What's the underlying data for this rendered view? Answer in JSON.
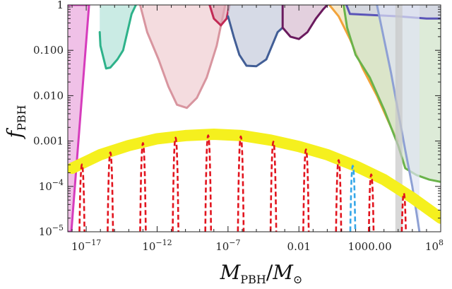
{
  "chart_data": {
    "type": "line",
    "title": "",
    "xscale": "log",
    "yscale": "log",
    "xlim_log10": [
      -18.3,
      8
    ],
    "ylim_log10": [
      -5,
      0
    ],
    "xlabel": {
      "main": "M",
      "sub": "PBH",
      "sep": "/",
      "main2": "M",
      "sub2": "⊙"
    },
    "ylabel": {
      "main": "f",
      "sub": "PBH"
    },
    "x_ticks": [
      {
        "log": -17,
        "base": "10",
        "exp": "−17"
      },
      {
        "log": -12,
        "base": "10",
        "exp": "−12"
      },
      {
        "log": -7,
        "base": "10",
        "exp": "−7"
      },
      {
        "log": -2,
        "text": "0.01"
      },
      {
        "log": 3,
        "text": "1000.00"
      },
      {
        "log": 8,
        "base": "10",
        "exp": "8"
      }
    ],
    "y_ticks": [
      {
        "log": 0,
        "text": "1"
      },
      {
        "log": -1,
        "text": "0.100"
      },
      {
        "log": -2,
        "text": "0.010"
      },
      {
        "log": -3,
        "text": "0.001"
      },
      {
        "log": -4,
        "base": "10",
        "exp": "−4"
      },
      {
        "log": -5,
        "base": "10",
        "exp": "−5"
      }
    ],
    "constraints": [
      {
        "name": "magenta",
        "stroke": "#d63cbc",
        "fill": "#e9a6dd",
        "points": [
          [
            -18.3,
            -5
          ],
          [
            -18.05,
            -5
          ],
          [
            -16.8,
            0
          ],
          [
            -18.3,
            0
          ]
        ]
      },
      {
        "name": "teal",
        "stroke": "#2eb28a",
        "fill": "#b4e3d8",
        "points": [
          [
            -16.05,
            -0.6
          ],
          [
            -16,
            -0.9
          ],
          [
            -15.6,
            -1.4
          ],
          [
            -15.3,
            -1.38
          ],
          [
            -14.8,
            -1.2
          ],
          [
            -14.4,
            -1.0
          ],
          [
            -14.1,
            -0.6
          ],
          [
            -13.8,
            -0.2
          ],
          [
            -13.5,
            0
          ]
        ]
      },
      {
        "name": "pink",
        "stroke": "#d8959f",
        "fill": "#efcdd2",
        "points": [
          [
            -13.2,
            0
          ],
          [
            -12.7,
            -0.6
          ],
          [
            -11.9,
            -1.2
          ],
          [
            -11.2,
            -1.8
          ],
          [
            -10.6,
            -2.2
          ],
          [
            -9.9,
            -2.27
          ],
          [
            -9.2,
            -2.05
          ],
          [
            -8.5,
            -1.6
          ],
          [
            -7.8,
            -0.9
          ],
          [
            -7.4,
            -0.3
          ],
          [
            -7.2,
            0
          ]
        ]
      },
      {
        "name": "crimson",
        "stroke": "#c22a55",
        "fill": "#e0a9b8",
        "points": [
          [
            -8.3,
            0
          ],
          [
            -8.0,
            -0.3
          ],
          [
            -7.5,
            -0.45
          ],
          [
            -7.1,
            -0.3
          ],
          [
            -6.9,
            0
          ]
        ]
      },
      {
        "name": "steelblue",
        "stroke": "#425e96",
        "fill": "#c5cbdb",
        "points": [
          [
            -7.0,
            -0.25
          ],
          [
            -6.6,
            -0.7
          ],
          [
            -6.2,
            -1.1
          ],
          [
            -5.7,
            -1.34
          ],
          [
            -5.0,
            -1.35
          ],
          [
            -4.3,
            -1.2
          ],
          [
            -3.9,
            -0.9
          ],
          [
            -3.5,
            -0.6
          ],
          [
            -3.15,
            -0.5
          ]
        ]
      },
      {
        "name": "plum",
        "stroke": "#6a1a5e",
        "fill": "#d7bcd0",
        "points": [
          [
            -3.15,
            0
          ],
          [
            -3.15,
            -0.5
          ],
          [
            -2.6,
            -0.7
          ],
          [
            -2.0,
            -0.75
          ],
          [
            -1.4,
            -0.6
          ],
          [
            -0.8,
            -0.3
          ],
          [
            -0.3,
            -0.1
          ],
          [
            0,
            0
          ]
        ]
      },
      {
        "name": "orange",
        "stroke": "#f2a33a",
        "fill": "#f3dfb8",
        "points": [
          [
            0.15,
            0
          ],
          [
            0.8,
            -0.25
          ],
          [
            1.6,
            -0.75
          ],
          [
            2.5,
            -1.4
          ],
          [
            3.5,
            -2.0
          ],
          [
            4.5,
            -2.7
          ],
          [
            5.0,
            -3.0
          ]
        ]
      },
      {
        "name": "green",
        "stroke": "#6ab34a",
        "fill": "#cfe3c8",
        "points": [
          [
            1.15,
            0
          ],
          [
            1.4,
            -0.5
          ],
          [
            2.0,
            -1.1
          ],
          [
            3.0,
            -1.6
          ],
          [
            4.0,
            -2.3
          ],
          [
            5.0,
            -3.1
          ],
          [
            5.5,
            -3.6
          ],
          [
            6.3,
            -3.75
          ],
          [
            7.2,
            -3.85
          ],
          [
            8,
            -3.9
          ]
        ]
      },
      {
        "name": "indigo",
        "stroke": "#5a54b8",
        "fill": "#d2d1e8",
        "points": [
          [
            1.35,
            0
          ],
          [
            1.6,
            -0.2
          ],
          [
            3.0,
            -0.22
          ],
          [
            5.0,
            -0.25
          ],
          [
            7.0,
            -0.3
          ],
          [
            8,
            -0.3
          ]
        ]
      },
      {
        "name": "periwinkle",
        "stroke": "#8ea0d4",
        "fill": "#dfe4f4",
        "points": [
          [
            3.5,
            0
          ],
          [
            4.5,
            -1.5
          ],
          [
            5.5,
            -3.2
          ],
          [
            6.0,
            -4.0
          ],
          [
            6.3,
            -4.6
          ],
          [
            6.5,
            -5
          ]
        ]
      },
      {
        "name": "grey-band",
        "stroke": "none",
        "fill": "#c8c8c8",
        "points": [
          [
            4.8,
            0
          ],
          [
            5.3,
            0
          ],
          [
            5.3,
            -5
          ],
          [
            4.8,
            -5
          ]
        ]
      }
    ],
    "envelope": {
      "name": "yellow envelope",
      "stroke": "#f5f01e",
      "points": [
        [
          -18.0,
          -3.6
        ],
        [
          -16,
          -3.3
        ],
        [
          -14,
          -3.1
        ],
        [
          -12,
          -2.95
        ],
        [
          -10,
          -2.88
        ],
        [
          -8,
          -2.85
        ],
        [
          -6,
          -2.88
        ],
        [
          -4,
          -2.98
        ],
        [
          -2,
          -3.12
        ],
        [
          0,
          -3.3
        ],
        [
          2,
          -3.55
        ],
        [
          4,
          -3.85
        ],
        [
          6,
          -4.25
        ],
        [
          8,
          -4.7
        ]
      ]
    },
    "spectra_red": {
      "stroke": "#e2141e",
      "peak_log10_masses": [
        -17.3,
        -15.3,
        -13.0,
        -10.7,
        -8.4,
        -6.1,
        -3.8,
        -1.5,
        0.8,
        3.1,
        5.4
      ]
    },
    "spectrum_blue": {
      "stroke": "#35a7e8",
      "peak_log10_mass": 1.8
    }
  }
}
